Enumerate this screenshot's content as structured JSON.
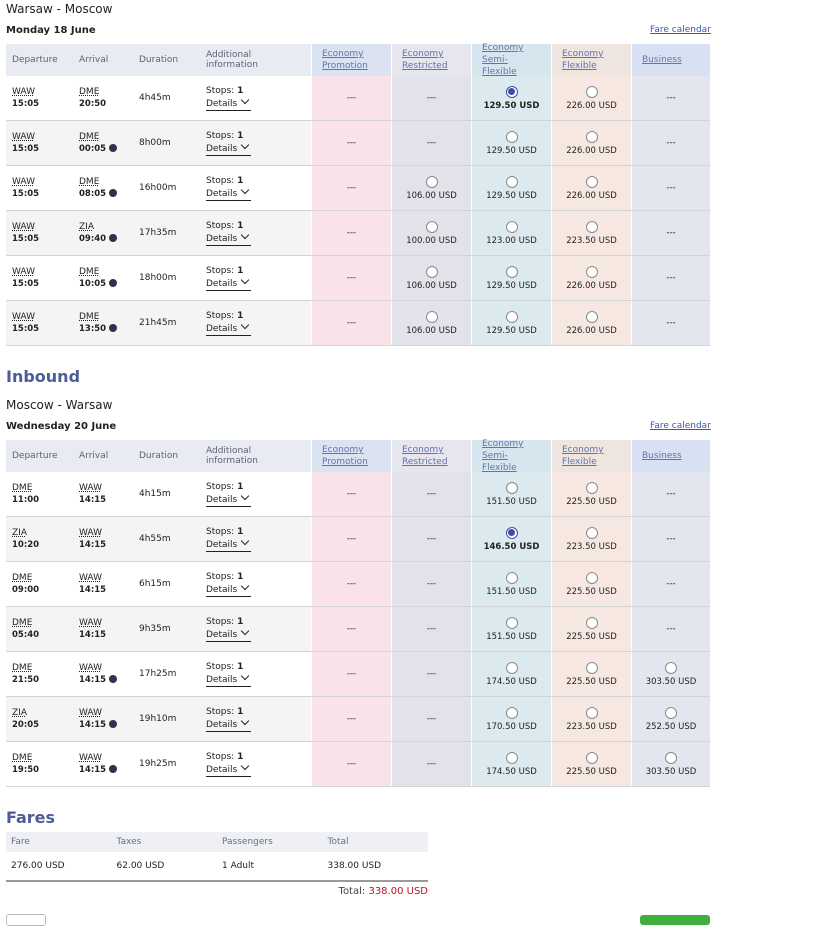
{
  "outbound": {
    "route": "Warsaw - Moscow",
    "date": "Monday 18 June",
    "fare_calendar": "Fare calendar",
    "rows": [
      {
        "dep_airport": "WAW",
        "dep_time": "15:05",
        "arr_airport": "DME",
        "arr_time": "20:50",
        "next_day": false,
        "duration": "4h45m",
        "stops": "1",
        "fares": [
          "---",
          "---",
          "129.50 USD",
          "226.00 USD",
          "---"
        ],
        "selected": 2
      },
      {
        "dep_airport": "WAW",
        "dep_time": "15:05",
        "arr_airport": "DME",
        "arr_time": "00:05",
        "next_day": true,
        "duration": "8h00m",
        "stops": "1",
        "fares": [
          "---",
          "---",
          "129.50 USD",
          "226.00 USD",
          "---"
        ],
        "selected": null
      },
      {
        "dep_airport": "WAW",
        "dep_time": "15:05",
        "arr_airport": "DME",
        "arr_time": "08:05",
        "next_day": true,
        "duration": "16h00m",
        "stops": "1",
        "fares": [
          "---",
          "106.00 USD",
          "129.50 USD",
          "226.00 USD",
          "---"
        ],
        "selected": null
      },
      {
        "dep_airport": "WAW",
        "dep_time": "15:05",
        "arr_airport": "ZIA",
        "arr_time": "09:40",
        "next_day": true,
        "duration": "17h35m",
        "stops": "1",
        "fares": [
          "---",
          "100.00 USD",
          "123.00 USD",
          "223.50 USD",
          "---"
        ],
        "selected": null
      },
      {
        "dep_airport": "WAW",
        "dep_time": "15:05",
        "arr_airport": "DME",
        "arr_time": "10:05",
        "next_day": true,
        "duration": "18h00m",
        "stops": "1",
        "fares": [
          "---",
          "106.00 USD",
          "129.50 USD",
          "226.00 USD",
          "---"
        ],
        "selected": null
      },
      {
        "dep_airport": "WAW",
        "dep_time": "15:05",
        "arr_airport": "DME",
        "arr_time": "13:50",
        "next_day": true,
        "duration": "21h45m",
        "stops": "1",
        "fares": [
          "---",
          "106.00 USD",
          "129.50 USD",
          "226.00 USD",
          "---"
        ],
        "selected": null
      }
    ]
  },
  "inbound": {
    "heading": "Inbound",
    "route": "Moscow - Warsaw",
    "date": "Wednesday 20 June",
    "fare_calendar": "Fare calendar",
    "rows": [
      {
        "dep_airport": "DME",
        "dep_time": "11:00",
        "arr_airport": "WAW",
        "arr_time": "14:15",
        "next_day": false,
        "duration": "4h15m",
        "stops": "1",
        "fares": [
          "---",
          "---",
          "151.50 USD",
          "225.50 USD",
          "---"
        ],
        "selected": null
      },
      {
        "dep_airport": "ZIA",
        "dep_time": "10:20",
        "arr_airport": "WAW",
        "arr_time": "14:15",
        "next_day": false,
        "duration": "4h55m",
        "stops": "1",
        "fares": [
          "---",
          "---",
          "146.50 USD",
          "223.50 USD",
          "---"
        ],
        "selected": 2
      },
      {
        "dep_airport": "DME",
        "dep_time": "09:00",
        "arr_airport": "WAW",
        "arr_time": "14:15",
        "next_day": false,
        "duration": "6h15m",
        "stops": "1",
        "fares": [
          "---",
          "---",
          "151.50 USD",
          "225.50 USD",
          "---"
        ],
        "selected": null
      },
      {
        "dep_airport": "DME",
        "dep_time": "05:40",
        "arr_airport": "WAW",
        "arr_time": "14:15",
        "next_day": false,
        "duration": "9h35m",
        "stops": "1",
        "fares": [
          "---",
          "---",
          "151.50 USD",
          "225.50 USD",
          "---"
        ],
        "selected": null
      },
      {
        "dep_airport": "DME",
        "dep_time": "21:50",
        "arr_airport": "WAW",
        "arr_time": "14:15",
        "next_day": true,
        "duration": "17h25m",
        "stops": "1",
        "fares": [
          "---",
          "---",
          "174.50 USD",
          "225.50 USD",
          "303.50 USD"
        ],
        "selected": null
      },
      {
        "dep_airport": "ZIA",
        "dep_time": "20:05",
        "arr_airport": "WAW",
        "arr_time": "14:15",
        "next_day": true,
        "duration": "19h10m",
        "stops": "1",
        "fares": [
          "---",
          "---",
          "170.50 USD",
          "223.50 USD",
          "252.50 USD"
        ],
        "selected": null
      },
      {
        "dep_airport": "DME",
        "dep_time": "19:50",
        "arr_airport": "WAW",
        "arr_time": "14:15",
        "next_day": true,
        "duration": "19h25m",
        "stops": "1",
        "fares": [
          "---",
          "---",
          "174.50 USD",
          "225.50 USD",
          "303.50 USD"
        ],
        "selected": null
      }
    ]
  },
  "columns": [
    "Departure",
    "Arrival",
    "Duration",
    "Additional information"
  ],
  "fare_classes": [
    "Economy Promotion",
    "Economy Restricted",
    "Economy Semi-Flexible",
    "Economy Flexible",
    "Business"
  ],
  "stops_label": "Stops:",
  "details_label": "Details",
  "fares": {
    "heading": "Fares",
    "columns": [
      "Fare",
      "Taxes",
      "Passengers",
      "Total"
    ],
    "row": [
      "276.00 USD",
      "62.00 USD",
      "1 Adult",
      "338.00 USD"
    ],
    "total_label": "Total:",
    "total_value": "338.00 USD"
  }
}
